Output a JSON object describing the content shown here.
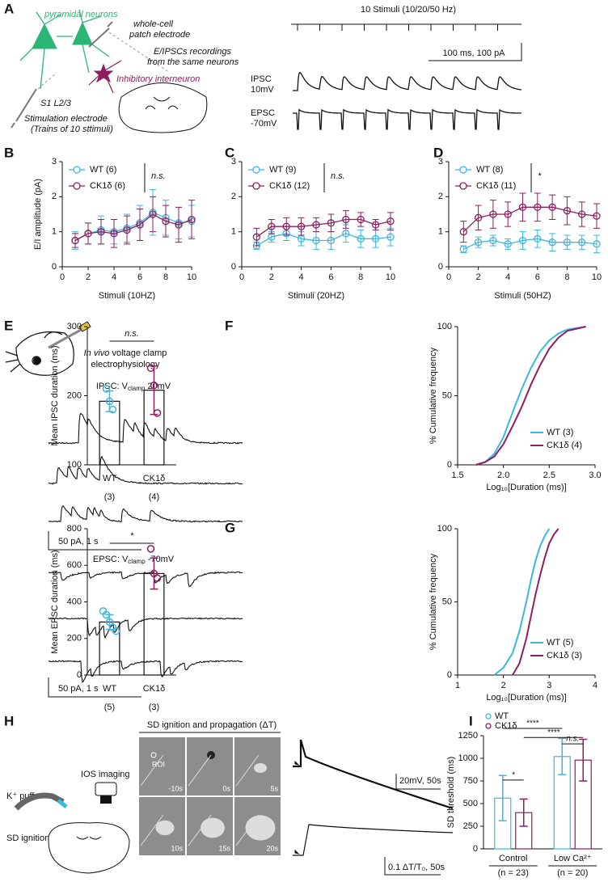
{
  "panel_labels": [
    "A",
    "B",
    "C",
    "D",
    "E",
    "F",
    "G",
    "H",
    "I"
  ],
  "diagram_a": {
    "pyramidal": "pyramidal neurons",
    "patch": [
      "whole-cell",
      "patch electrode"
    ],
    "recordings": [
      "E/IPSCs recordings",
      "from the same neurons"
    ],
    "interneuron": "Inhibitory interneuron",
    "layer": "S1 L2/3",
    "stim": [
      "Stimulation electrode",
      "(Trains of 10 sttimuli)"
    ],
    "stimuli": "10 Stimuli (10/20/50 Hz)",
    "scale": "100 ms, 100 pA",
    "ipsc": [
      "IPSC",
      "10mV"
    ],
    "epsc": [
      "EPSC",
      "-70mV"
    ]
  },
  "diagram_e": {
    "method_italic": "In vivo",
    "method": " voltage clamp",
    "method2": "electrophysiology",
    "ipsc": {
      "pre": "IPSC: V",
      "sub": "clamp",
      "post": " 20mV"
    },
    "epsc": {
      "pre": "EPSC: V",
      "sub": "clamp",
      "post": " -70mV"
    },
    "scale_ipsc": "50 pA,  1 s",
    "scale_epsc": "50 pA,  1 s"
  },
  "diagram_h": {
    "kpuff": "K⁺ puff",
    "ios": "IOS imaging",
    "ignition": "SD ignition",
    "title": "SD ignition and propagation (ΔT)",
    "roi": "ROI",
    "times": [
      "-10s",
      "0s",
      "5s",
      "10s",
      "15s",
      "20s"
    ],
    "scale_top": "20mV, 50s",
    "scale_bottom": "0.1 ΔT/T₀, 50s"
  },
  "chart_data": [
    {
      "type": "line",
      "xlabel": "Stimuli (10HZ)",
      "ylabel": "E/I amplitude (pA)",
      "x": [
        1,
        2,
        3,
        4,
        5,
        6,
        7,
        8,
        9,
        10
      ],
      "xlim": [
        0,
        10
      ],
      "xticks": [
        0,
        2,
        4,
        6,
        8,
        10
      ],
      "ylim": [
        0,
        3
      ],
      "yticks": [
        0,
        1,
        2,
        3
      ],
      "legend": "upper left",
      "annotation": "n.s.",
      "series": [
        {
          "name": "WT (6)",
          "color": "#3cb8dc",
          "values": [
            0.75,
            0.95,
            1.05,
            1.0,
            1.1,
            1.25,
            1.55,
            1.4,
            1.25,
            1.3
          ],
          "errors": [
            0.25,
            0.3,
            0.4,
            0.35,
            0.4,
            0.5,
            0.65,
            0.5,
            0.45,
            0.45
          ]
        },
        {
          "name": "CK1δ (6)",
          "color": "#8e1f5e",
          "values": [
            0.75,
            0.95,
            1.0,
            0.95,
            1.05,
            1.2,
            1.5,
            1.3,
            1.2,
            1.35
          ],
          "errors": [
            0.2,
            0.3,
            0.35,
            0.4,
            0.4,
            0.45,
            0.5,
            0.45,
            0.5,
            0.55
          ]
        }
      ]
    },
    {
      "type": "line",
      "xlabel": "Stimuli (20HZ)",
      "x": [
        1,
        2,
        3,
        4,
        5,
        6,
        7,
        8,
        9,
        10
      ],
      "xlim": [
        0,
        10
      ],
      "xticks": [
        0,
        2,
        4,
        6,
        8,
        10
      ],
      "ylim": [
        0,
        3
      ],
      "yticks": [
        0,
        1,
        2,
        3
      ],
      "legend": "upper left",
      "annotation": "n.s.",
      "series": [
        {
          "name": "WT (9)",
          "color": "#3cb8dc",
          "values": [
            0.6,
            0.85,
            0.95,
            0.8,
            0.75,
            0.75,
            0.95,
            0.8,
            0.8,
            0.85
          ],
          "errors": [
            0.1,
            0.15,
            0.2,
            0.2,
            0.25,
            0.25,
            0.25,
            0.25,
            0.25,
            0.25
          ]
        },
        {
          "name": "CK1δ (12)",
          "color": "#8e1f5e",
          "values": [
            0.85,
            1.15,
            1.15,
            1.15,
            1.2,
            1.25,
            1.35,
            1.35,
            1.2,
            1.3
          ],
          "errors": [
            0.25,
            0.2,
            0.25,
            0.25,
            0.2,
            0.25,
            0.25,
            0.2,
            0.15,
            0.25
          ]
        }
      ]
    },
    {
      "type": "line",
      "xlabel": "Stimuli (50HZ)",
      "x": [
        1,
        2,
        3,
        4,
        5,
        6,
        7,
        8,
        9,
        10
      ],
      "xlim": [
        0,
        10
      ],
      "xticks": [
        0,
        2,
        4,
        6,
        8,
        10
      ],
      "ylim": [
        0,
        3
      ],
      "yticks": [
        0,
        1,
        2,
        3
      ],
      "legend": "upper left",
      "annotation": "*",
      "series": [
        {
          "name": "WT (8)",
          "color": "#3cb8dc",
          "values": [
            0.5,
            0.7,
            0.75,
            0.65,
            0.75,
            0.8,
            0.7,
            0.7,
            0.7,
            0.65
          ],
          "errors": [
            0.1,
            0.15,
            0.15,
            0.15,
            0.25,
            0.25,
            0.25,
            0.2,
            0.2,
            0.25
          ]
        },
        {
          "name": "CK1δ (11)",
          "color": "#8e1f5e",
          "values": [
            1.0,
            1.4,
            1.5,
            1.5,
            1.7,
            1.7,
            1.7,
            1.6,
            1.5,
            1.45
          ],
          "errors": [
            0.3,
            0.35,
            0.4,
            0.35,
            0.4,
            0.4,
            0.35,
            0.4,
            0.35,
            0.35
          ]
        }
      ]
    },
    {
      "type": "bar",
      "ylabel": "Mean IPSC duration (ms)",
      "categories": [
        "WT",
        "CK1δ"
      ],
      "sample_sizes": [
        "(3)",
        "(4)"
      ],
      "values": [
        192,
        208
      ],
      "errors": [
        15,
        35
      ],
      "points": [
        [
          210,
          192,
          180
        ],
        [
          240,
          215,
          175
        ]
      ],
      "colors": [
        "#3cb8dc",
        "#8e1f5e"
      ],
      "ylim": [
        100,
        300
      ],
      "yticks": [
        100,
        200,
        300
      ],
      "annotation": "n.s."
    },
    {
      "type": "line",
      "ylabel": "% Cumulative frequency",
      "xlabel": "Log₁₀[Duration (ms)]",
      "xlim": [
        1.5,
        3
      ],
      "xticks": [
        1.5,
        {
          "value": 2,
          "label": "2.0"
        },
        2.5,
        {
          "value": 3,
          "label": "3.0"
        }
      ],
      "ylim": [
        0,
        100
      ],
      "yticks": [
        0,
        50,
        100
      ],
      "legend": "lower right",
      "series": [
        {
          "name": "WT (3)",
          "color": "#3cb8dc",
          "x": [
            1.7,
            1.8,
            1.9,
            2.0,
            2.1,
            2.2,
            2.3,
            2.4,
            2.5,
            2.6,
            2.7,
            2.9
          ],
          "values": [
            0,
            2,
            8,
            20,
            38,
            55,
            70,
            82,
            90,
            95,
            98,
            100
          ]
        },
        {
          "name": "CK1δ (4)",
          "color": "#8e1f5e",
          "x": [
            1.7,
            1.8,
            1.9,
            2.0,
            2.1,
            2.2,
            2.3,
            2.4,
            2.5,
            2.6,
            2.7,
            2.9
          ],
          "values": [
            0,
            2,
            6,
            15,
            28,
            42,
            58,
            72,
            84,
            92,
            97,
            100
          ]
        }
      ]
    },
    {
      "type": "bar",
      "ylabel": "Mean EPSC duration (ms)",
      "categories": [
        "WT",
        "CK1δ"
      ],
      "sample_sizes": [
        "(5)",
        "(3)"
      ],
      "values": [
        290,
        555
      ],
      "errors": [
        40,
        85
      ],
      "points": [
        [
          350,
          330,
          290,
          260,
          240
        ],
        [
          690,
          555,
          530
        ]
      ],
      "colors": [
        "#3cb8dc",
        "#8e1f5e"
      ],
      "ylim": [
        0,
        800
      ],
      "yticks": [
        0,
        200,
        400,
        600,
        800
      ],
      "annotation": "*"
    },
    {
      "type": "line",
      "ylabel": "% Cumulative frequency",
      "xlabel": "Log₁₀[Duration (ms)]",
      "xlim": [
        1,
        4
      ],
      "xticks": [
        1,
        2,
        3,
        4
      ],
      "ylim": [
        0,
        100
      ],
      "yticks": [
        0,
        50,
        100
      ],
      "legend": "lower right",
      "series": [
        {
          "name": "WT (5)",
          "color": "#3cb8dc",
          "x": [
            1.8,
            2.0,
            2.2,
            2.35,
            2.5,
            2.6,
            2.7,
            2.8,
            2.9,
            3.0
          ],
          "values": [
            0,
            5,
            15,
            30,
            50,
            65,
            78,
            88,
            95,
            100
          ]
        },
        {
          "name": "CK1δ (3)",
          "color": "#8e1f5e",
          "x": [
            2.2,
            2.35,
            2.5,
            2.6,
            2.7,
            2.8,
            2.9,
            3.0,
            3.1,
            3.2
          ],
          "values": [
            0,
            8,
            25,
            40,
            55,
            68,
            80,
            90,
            96,
            100
          ]
        }
      ]
    },
    {
      "type": "bar",
      "ylabel": "SD threshold (ms)",
      "categories": [
        "Control",
        "Low Ca²⁺"
      ],
      "sample_sizes": [
        "(n = 23)",
        "(n = 20)"
      ],
      "ylim": [
        0,
        1250
      ],
      "yticks": [
        0,
        250,
        500,
        750,
        1000,
        1250
      ],
      "legend": "top",
      "annotations": [
        "*",
        "****",
        "****",
        "n.s."
      ],
      "series": [
        {
          "name": "WT",
          "color": "#3cb8dc",
          "values": [
            560,
            1020
          ],
          "errors": [
            250,
            200
          ]
        },
        {
          "name": "CK1δ",
          "color": "#8e1f5e",
          "values": [
            400,
            980
          ],
          "errors": [
            150,
            230
          ]
        }
      ]
    }
  ]
}
